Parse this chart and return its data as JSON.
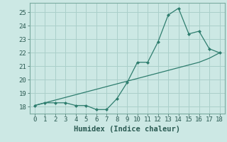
{
  "xlabel": "Humidex (Indice chaleur)",
  "x": [
    0,
    1,
    2,
    3,
    4,
    5,
    6,
    7,
    8,
    9,
    10,
    11,
    12,
    13,
    14,
    15,
    16,
    17,
    18
  ],
  "y_curve": [
    18.1,
    18.3,
    18.3,
    18.3,
    18.1,
    18.1,
    17.8,
    17.8,
    18.6,
    19.8,
    21.3,
    21.3,
    22.8,
    24.8,
    25.3,
    23.4,
    23.6,
    22.3,
    22.0
  ],
  "y_linear": [
    18.1,
    18.3,
    18.5,
    18.7,
    18.9,
    19.1,
    19.3,
    19.5,
    19.7,
    19.9,
    20.1,
    20.3,
    20.5,
    20.7,
    20.9,
    21.1,
    21.3,
    21.6,
    22.0
  ],
  "line_color": "#2e7d6e",
  "bg_color": "#cce8e4",
  "grid_color": "#aacfca",
  "ylim": [
    17.5,
    25.7
  ],
  "xlim": [
    -0.5,
    18.5
  ],
  "yticks": [
    18,
    19,
    20,
    21,
    22,
    23,
    24,
    25
  ],
  "xticks": [
    0,
    1,
    2,
    3,
    4,
    5,
    6,
    7,
    8,
    9,
    10,
    11,
    12,
    13,
    14,
    15,
    16,
    17,
    18
  ],
  "tick_fontsize": 6.5,
  "xlabel_fontsize": 7.5
}
